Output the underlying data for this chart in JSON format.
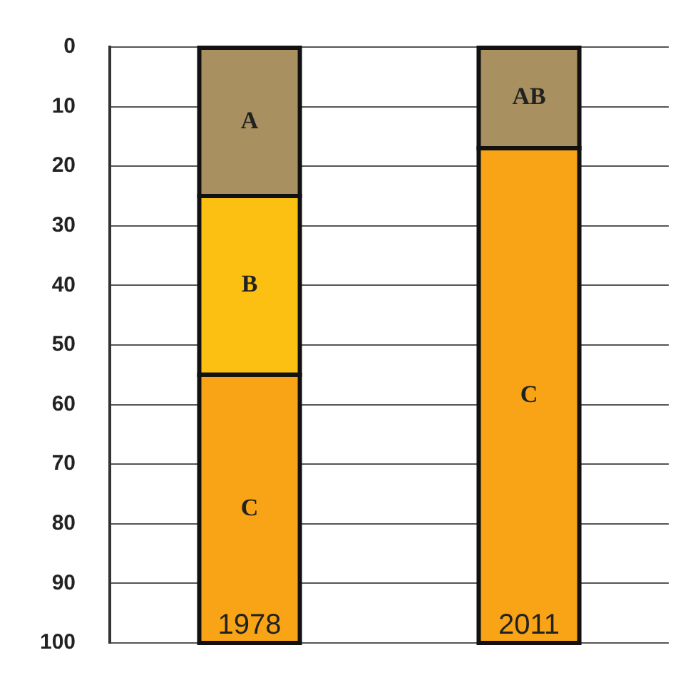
{
  "chart_data": {
    "type": "bar",
    "stacked": true,
    "categories": [
      "1978",
      "2011"
    ],
    "series": [
      {
        "color": "#a89060",
        "values": [
          25,
          17
        ],
        "value_labels": [
          "A",
          "AB"
        ]
      },
      {
        "color": "#fcc012",
        "values": [
          30,
          null
        ],
        "value_labels": [
          "B",
          null
        ]
      },
      {
        "color": "#f9a416",
        "values": [
          45,
          83
        ],
        "value_labels": [
          "C",
          "C"
        ]
      }
    ],
    "ylim": [
      100,
      0
    ],
    "yticks": [
      0,
      10,
      20,
      30,
      40,
      50,
      60,
      70,
      80,
      90,
      100
    ],
    "grid": "y",
    "legend": false
  }
}
